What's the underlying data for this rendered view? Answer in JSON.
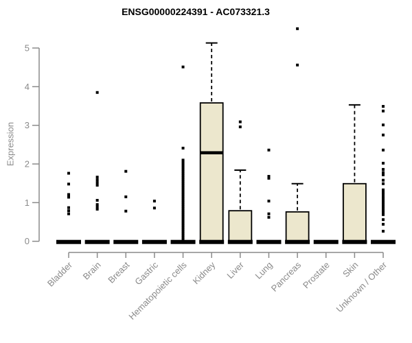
{
  "colors": {
    "box_fill": "#ECE7CD",
    "box_stroke": "#000000",
    "median": "#000000",
    "point": "#000000",
    "axis": "#8a8a8a",
    "axis_text": "#8a8a8a",
    "title_text": "#000000",
    "background": "#ffffff"
  },
  "chart_data": {
    "type": "boxplot",
    "title": "ENSG00000224391 - AC073321.3",
    "xlabel": "",
    "ylabel": "Expression",
    "ylim": [
      0,
      5.6
    ],
    "yticks": [
      0,
      1,
      2,
      3,
      4,
      5
    ],
    "grid": false,
    "legend": "none",
    "point_marker": "square",
    "categories": [
      "Bladder",
      "Brain",
      "Breast",
      "Gastric",
      "Hematopoietic cells",
      "Kidney",
      "Liver",
      "Lung",
      "Pancreas",
      "Prostate",
      "Skin",
      "Unknown / Other"
    ],
    "boxes": [
      {
        "category": "Bladder",
        "q1": 0,
        "median": 0,
        "q3": 0,
        "whisker_low": 0,
        "whisker_high": 0,
        "outliers": [
          1.76,
          1.48,
          1.21,
          1.14,
          0.87,
          0.79,
          0.71
        ]
      },
      {
        "category": "Brain",
        "q1": 0,
        "median": 0,
        "q3": 0,
        "whisker_low": 0,
        "whisker_high": 0,
        "outliers": [
          3.85,
          1.66,
          1.59,
          1.52,
          1.45,
          1.06,
          0.95,
          0.89,
          0.83
        ]
      },
      {
        "category": "Breast",
        "q1": 0,
        "median": 0,
        "q3": 0,
        "whisker_low": 0,
        "whisker_high": 0,
        "outliers": [
          1.81,
          1.15,
          0.78
        ]
      },
      {
        "category": "Gastric",
        "q1": 0,
        "median": 0,
        "q3": 0,
        "whisker_low": 0,
        "whisker_high": 0,
        "outliers": [
          1.04,
          0.86
        ]
      },
      {
        "category": "Hematopoietic cells",
        "q1": 0,
        "median": 0,
        "q3": 0,
        "whisker_low": 0,
        "whisker_high": 0,
        "outliers": [
          4.51,
          2.41,
          2.1,
          2.05,
          2.0,
          1.95,
          1.9,
          1.85,
          1.8,
          1.75,
          1.7,
          1.65,
          1.6,
          1.55,
          1.5,
          1.45,
          1.4,
          1.35,
          1.3,
          1.25,
          1.2,
          1.15,
          1.1,
          1.05,
          1.0,
          0.95,
          0.9,
          0.85,
          0.8,
          0.75,
          0.7,
          0.65,
          0.6,
          0.55,
          0.5,
          0.45,
          0.4,
          0.35,
          0.3,
          0.25,
          0.2,
          0.15,
          0.1,
          0.05
        ]
      },
      {
        "category": "Kidney",
        "q1": 0,
        "median": 2.29,
        "q3": 3.58,
        "whisker_low": 0,
        "whisker_high": 5.13,
        "outliers": []
      },
      {
        "category": "Liver",
        "q1": 0,
        "median": 0,
        "q3": 0.79,
        "whisker_low": 0,
        "whisker_high": 1.84,
        "outliers": [
          3.09,
          2.96
        ]
      },
      {
        "category": "Lung",
        "q1": 0,
        "median": 0,
        "q3": 0,
        "whisker_low": 0,
        "whisker_high": 0,
        "outliers": [
          2.36,
          1.68,
          1.63,
          1.04,
          0.71,
          0.62
        ]
      },
      {
        "category": "Pancreas",
        "q1": 0,
        "median": 0,
        "q3": 0.76,
        "whisker_low": 0,
        "whisker_high": 1.49,
        "outliers": [
          5.5,
          4.56
        ]
      },
      {
        "category": "Prostate",
        "q1": 0,
        "median": 0,
        "q3": 0,
        "whisker_low": 0,
        "whisker_high": 0,
        "outliers": []
      },
      {
        "category": "Skin",
        "q1": 0,
        "median": 0,
        "q3": 1.49,
        "whisker_low": 0,
        "whisker_high": 3.53,
        "outliers": []
      },
      {
        "category": "Unknown / Other",
        "q1": 0,
        "median": 0,
        "q3": 0,
        "whisker_low": 0,
        "whisker_high": 0,
        "outliers": [
          3.49,
          3.37,
          3.01,
          2.75,
          2.36,
          2.02,
          1.86,
          1.78,
          1.72,
          1.58,
          1.49,
          1.33,
          1.27,
          1.22,
          1.15,
          1.1,
          1.05,
          1.0,
          0.95,
          0.9,
          0.85,
          0.8,
          0.75,
          0.69,
          0.56,
          0.44,
          0.26
        ]
      }
    ]
  }
}
